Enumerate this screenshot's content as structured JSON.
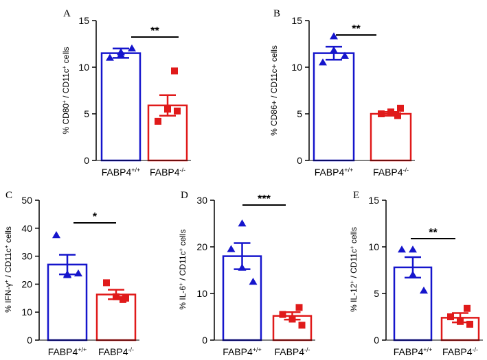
{
  "chart_data": [
    {
      "panel": "A",
      "type": "bar",
      "ylabel": {
        "pre": "% CD80",
        "sup1": "+",
        "mid": " / CD11c",
        "sup2": "+",
        "post": " cells"
      },
      "ylim": [
        0,
        15
      ],
      "yticks": [
        0,
        5,
        10,
        15
      ],
      "categories": [
        {
          "name": "FABP4",
          "sup": "+/+"
        },
        {
          "name": "FABP4",
          "sup": "-/-"
        }
      ],
      "series": [
        {
          "mean": 11.5,
          "sem": 0.5,
          "color": "#1515cc",
          "marker": "triangle",
          "points": [
            11.6,
            11.0,
            11.3,
            12.0
          ]
        },
        {
          "mean": 5.9,
          "sem": 1.1,
          "color": "#e01a1a",
          "marker": "square",
          "points": [
            9.6,
            4.2,
            5.5,
            5.3
          ]
        }
      ],
      "significance": "**"
    },
    {
      "panel": "B",
      "type": "bar",
      "ylabel": {
        "pre": "% CD86+ / CD11c+ cells",
        "sup1": "",
        "mid": "",
        "sup2": "",
        "post": ""
      },
      "ylim": [
        0,
        15
      ],
      "yticks": [
        0,
        5,
        10,
        15
      ],
      "categories": [
        {
          "name": "FABP4",
          "sup": "+/+"
        },
        {
          "name": "FABP4",
          "sup": "-/-"
        }
      ],
      "series": [
        {
          "mean": 11.5,
          "sem": 0.7,
          "color": "#1515cc",
          "marker": "triangle",
          "points": [
            13.3,
            10.5,
            11.8,
            11.2
          ]
        },
        {
          "mean": 5.0,
          "sem": 0.2,
          "color": "#e01a1a",
          "marker": "square",
          "points": [
            4.8,
            5.0,
            5.2,
            5.6
          ]
        }
      ],
      "significance": "**"
    },
    {
      "panel": "C",
      "type": "bar",
      "ylabel": {
        "pre": "% IFN-γ",
        "sup1": "+",
        "mid": " / CD11c",
        "sup2": "+",
        "post": " cells"
      },
      "ylim": [
        0,
        50
      ],
      "yticks": [
        0,
        10,
        20,
        30,
        40,
        50
      ],
      "categories": [
        {
          "name": "FABP4",
          "sup": "+/+"
        },
        {
          "name": "FABP4",
          "sup": "-/-"
        }
      ],
      "series": [
        {
          "mean": 27.0,
          "sem": 3.5,
          "color": "#1515cc",
          "marker": "triangle",
          "points": [
            23.5,
            37.5,
            23.2,
            23.8
          ]
        },
        {
          "mean": 16.3,
          "sem": 1.7,
          "color": "#e01a1a",
          "marker": "square",
          "points": [
            14.5,
            20.5,
            15.5,
            15.0
          ]
        }
      ],
      "significance": "*"
    },
    {
      "panel": "D",
      "type": "bar",
      "ylabel": {
        "pre": "% IL-6",
        "sup1": "+",
        "mid": " / CD11c",
        "sup2": "+",
        "post": " cells"
      },
      "ylim": [
        0,
        30
      ],
      "yticks": [
        0,
        10,
        20,
        30
      ],
      "categories": [
        {
          "name": "FABP4",
          "sup": "+/+"
        },
        {
          "name": "FABP4",
          "sup": "-/-"
        }
      ],
      "series": [
        {
          "mean": 18.0,
          "sem": 2.8,
          "color": "#1515cc",
          "marker": "triangle",
          "points": [
            25.0,
            19.5,
            15.5,
            12.5
          ]
        },
        {
          "mean": 5.2,
          "sem": 0.8,
          "color": "#e01a1a",
          "marker": "square",
          "points": [
            7.0,
            5.5,
            4.5,
            3.2
          ]
        }
      ],
      "significance": "***"
    },
    {
      "panel": "E",
      "type": "bar",
      "ylabel": {
        "pre": "% IL-12",
        "sup1": "+",
        "mid": " / CD11c",
        "sup2": "+",
        "post": " cells"
      },
      "ylim": [
        0,
        15
      ],
      "yticks": [
        0,
        5,
        10,
        15
      ],
      "categories": [
        {
          "name": "FABP4",
          "sup": "+/+"
        },
        {
          "name": "FABP4",
          "sup": "-/-"
        }
      ],
      "series": [
        {
          "mean": 7.8,
          "sem": 1.1,
          "color": "#1515cc",
          "marker": "triangle",
          "points": [
            9.7,
            9.7,
            7.0,
            5.3
          ]
        },
        {
          "mean": 2.4,
          "sem": 0.5,
          "color": "#e01a1a",
          "marker": "square",
          "points": [
            3.4,
            2.5,
            2.0,
            1.7
          ]
        }
      ],
      "significance": "**"
    }
  ]
}
